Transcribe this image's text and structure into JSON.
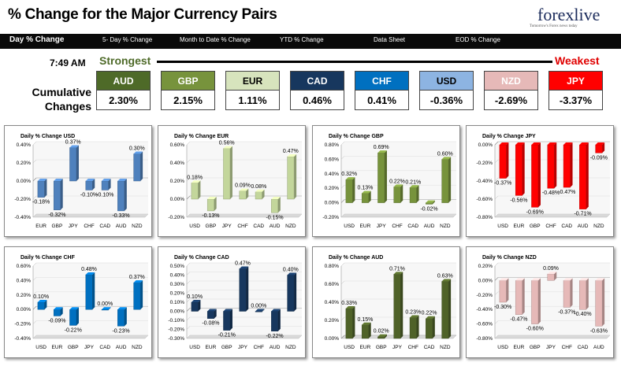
{
  "header": {
    "title": "% Change for the Major Currency Pairs",
    "logo_text": "forexlive",
    "logo_tagline": "Tomorrow's Forex news today"
  },
  "nav": {
    "items": [
      "Day % Change",
      "5- Day % Change",
      "Month to Date % Change",
      "YTD % Change",
      "Data Sheet",
      "EOD % Change"
    ],
    "active": "Day % Change"
  },
  "summary": {
    "time": "7:49 AM",
    "strongest_label": "Strongest",
    "weakest_label": "Weakest",
    "cumulative_label": "Cumulative Changes",
    "rankings": [
      {
        "currency": "AUD",
        "value": "2.30%",
        "color": "#4e6a28",
        "text_color": "#ffffff"
      },
      {
        "currency": "GBP",
        "value": "2.15%",
        "color": "#77933c",
        "text_color": "#ffffff"
      },
      {
        "currency": "EUR",
        "value": "1.11%",
        "color": "#d7e4bd",
        "text_color": "#000000"
      },
      {
        "currency": "CAD",
        "value": "0.46%",
        "color": "#17375e",
        "text_color": "#ffffff"
      },
      {
        "currency": "CHF",
        "value": "0.41%",
        "color": "#0070c0",
        "text_color": "#ffffff"
      },
      {
        "currency": "USD",
        "value": "-0.36%",
        "color": "#8db4e2",
        "text_color": "#000000"
      },
      {
        "currency": "NZD",
        "value": "-2.69%",
        "color": "#e6b9b8",
        "text_color": "#ffffff"
      },
      {
        "currency": "JPY",
        "value": "-3.37%",
        "color": "#ff0000",
        "text_color": "#ffffff"
      }
    ]
  },
  "chart_data": [
    {
      "type": "bar",
      "title": "Daily % Change USD",
      "color": "#4f81bd",
      "categories": [
        "EUR",
        "GBP",
        "JPY",
        "CHF",
        "CAD",
        "AUD",
        "NZD"
      ],
      "values": [
        -0.18,
        -0.32,
        0.37,
        -0.1,
        -0.1,
        -0.33,
        0.3
      ],
      "labels": [
        "-0.18%",
        "-0.32%",
        "0.37%",
        "-0.10%",
        "-0.10%",
        "-0.33%",
        "0.30%"
      ],
      "ticks": [
        -0.4,
        -0.2,
        0.0,
        0.2,
        0.4
      ],
      "tick_labels": [
        "-0.40%",
        "-0.20%",
        "0.00%",
        "0.20%",
        "0.40%"
      ],
      "ylim": [
        -0.4,
        0.4
      ]
    },
    {
      "type": "bar",
      "title": "Daily % Change EUR",
      "color": "#c3d69b",
      "categories": [
        "USD",
        "GBP",
        "JPY",
        "CHF",
        "CAD",
        "AUD",
        "NZD"
      ],
      "values": [
        0.18,
        -0.13,
        0.56,
        0.09,
        0.08,
        -0.15,
        0.47
      ],
      "labels": [
        "0.18%",
        "-0.13%",
        "0.56%",
        "0.09%",
        "0.08%",
        "-0.15%",
        "0.47%"
      ],
      "ticks": [
        -0.2,
        0.0,
        0.2,
        0.4,
        0.6
      ],
      "tick_labels": [
        "-0.20%",
        "0.00%",
        "0.20%",
        "0.40%",
        "0.60%"
      ],
      "ylim": [
        -0.2,
        0.6
      ]
    },
    {
      "type": "bar",
      "title": "Daily % Change GBP",
      "color": "#77933c",
      "categories": [
        "USD",
        "EUR",
        "JPY",
        "CHF",
        "CAD",
        "AUD",
        "NZD"
      ],
      "values": [
        0.32,
        0.13,
        0.69,
        0.22,
        0.21,
        -0.02,
        0.6
      ],
      "labels": [
        "0.32%",
        "0.13%",
        "0.69%",
        "0.22%",
        "0.21%",
        "-0.02%",
        "0.60%"
      ],
      "ticks": [
        -0.2,
        0.0,
        0.2,
        0.4,
        0.6,
        0.8
      ],
      "tick_labels": [
        "-0.20%",
        "0.00%",
        "0.20%",
        "0.40%",
        "0.60%",
        "0.80%"
      ],
      "ylim": [
        -0.2,
        0.8
      ]
    },
    {
      "type": "bar",
      "title": "Daily % Change JPY",
      "color": "#ff0000",
      "categories": [
        "USD",
        "EUR",
        "GBP",
        "CHF",
        "CAD",
        "AUD",
        "NZD"
      ],
      "values": [
        -0.37,
        -0.56,
        -0.69,
        -0.48,
        -0.47,
        -0.71,
        -0.09
      ],
      "labels": [
        "-0.37%",
        "-0.56%",
        "-0.69%",
        "-0.48%",
        "-0.47%",
        "-0.71%",
        "-0.09%"
      ],
      "ticks": [
        -0.8,
        -0.6,
        -0.4,
        -0.2,
        0.0
      ],
      "tick_labels": [
        "-0.80%",
        "-0.60%",
        "-0.40%",
        "-0.20%",
        "0.00%"
      ],
      "ylim": [
        -0.8,
        0.0
      ]
    },
    {
      "type": "bar",
      "title": "Daily % Change CHF",
      "color": "#0070c0",
      "categories": [
        "USD",
        "EUR",
        "GBP",
        "JPY",
        "CAD",
        "AUD",
        "NZD"
      ],
      "values": [
        0.1,
        -0.09,
        -0.22,
        0.48,
        0.0,
        -0.23,
        0.37
      ],
      "labels": [
        "0.10%",
        "-0.09%",
        "-0.22%",
        "0.48%",
        "0.00%",
        "-0.23%",
        "0.37%"
      ],
      "ticks": [
        -0.4,
        -0.2,
        0.0,
        0.2,
        0.4,
        0.6
      ],
      "tick_labels": [
        "-0.40%",
        "-0.20%",
        "0.00%",
        "0.20%",
        "0.40%",
        "0.60%"
      ],
      "ylim": [
        -0.4,
        0.6
      ]
    },
    {
      "type": "bar",
      "title": "Daily % Change CAD",
      "color": "#17375e",
      "categories": [
        "USD",
        "EUR",
        "GBP",
        "JPY",
        "CHF",
        "AUD",
        "NZD"
      ],
      "values": [
        0.1,
        -0.08,
        -0.21,
        0.47,
        0.0,
        -0.22,
        0.4
      ],
      "labels": [
        "0.10%",
        "-0.08%",
        "-0.21%",
        "0.47%",
        "0.00%",
        "-0.22%",
        "0.40%"
      ],
      "ticks": [
        -0.3,
        -0.2,
        -0.1,
        0.0,
        0.1,
        0.2,
        0.3,
        0.4,
        0.5
      ],
      "tick_labels": [
        "-0.30%",
        "-0.20%",
        "-0.10%",
        "0.00%",
        "0.10%",
        "0.20%",
        "0.30%",
        "0.40%",
        "0.50%"
      ],
      "ylim": [
        -0.3,
        0.5
      ]
    },
    {
      "type": "bar",
      "title": "Daily % Change AUD",
      "color": "#4f6228",
      "categories": [
        "USD",
        "EUR",
        "GBP",
        "JPY",
        "CHF",
        "CAD",
        "NZD"
      ],
      "values": [
        0.33,
        0.15,
        0.02,
        0.71,
        0.23,
        0.22,
        0.63
      ],
      "labels": [
        "0.33%",
        "0.15%",
        "0.02%",
        "0.71%",
        "0.23%",
        "0.22%",
        "0.63%"
      ],
      "ticks": [
        0.0,
        0.2,
        0.4,
        0.6,
        0.8
      ],
      "tick_labels": [
        "0.00%",
        "0.20%",
        "0.40%",
        "0.60%",
        "0.80%"
      ],
      "ylim": [
        0.0,
        0.8
      ]
    },
    {
      "type": "bar",
      "title": "Daily % Change NZD",
      "color": "#e6b9b8",
      "categories": [
        "USD",
        "EUR",
        "GBP",
        "JPY",
        "CHF",
        "CAD",
        "AUD"
      ],
      "values": [
        -0.3,
        -0.47,
        -0.6,
        0.09,
        -0.37,
        -0.4,
        -0.63
      ],
      "labels": [
        "-0.30%",
        "-0.47%",
        "-0.60%",
        "0.09%",
        "-0.37%",
        "-0.40%",
        "-0.63%"
      ],
      "ticks": [
        -0.8,
        -0.6,
        -0.4,
        -0.2,
        0.0,
        0.2
      ],
      "tick_labels": [
        "-0.80%",
        "-0.60%",
        "-0.40%",
        "-0.20%",
        "0.00%",
        "0.20%"
      ],
      "ylim": [
        -0.8,
        0.2
      ]
    }
  ]
}
